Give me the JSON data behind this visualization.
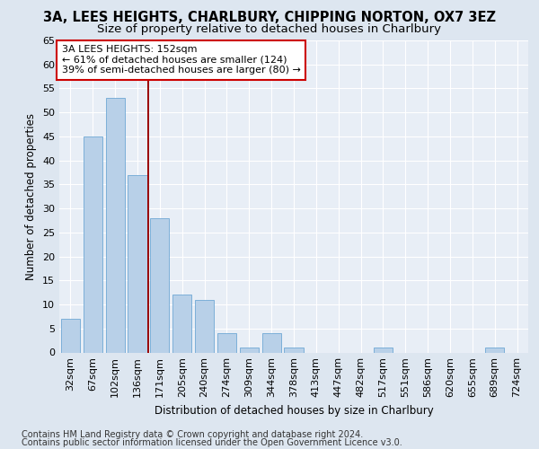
{
  "title1": "3A, LEES HEIGHTS, CHARLBURY, CHIPPING NORTON, OX7 3EZ",
  "title2": "Size of property relative to detached houses in Charlbury",
  "xlabel": "Distribution of detached houses by size in Charlbury",
  "ylabel": "Number of detached properties",
  "categories": [
    "32sqm",
    "67sqm",
    "102sqm",
    "136sqm",
    "171sqm",
    "205sqm",
    "240sqm",
    "274sqm",
    "309sqm",
    "344sqm",
    "378sqm",
    "413sqm",
    "447sqm",
    "482sqm",
    "517sqm",
    "551sqm",
    "586sqm",
    "620sqm",
    "655sqm",
    "689sqm",
    "724sqm"
  ],
  "values": [
    7,
    45,
    53,
    37,
    28,
    12,
    11,
    4,
    1,
    4,
    1,
    0,
    0,
    0,
    1,
    0,
    0,
    0,
    0,
    1,
    0
  ],
  "bar_color": "#b8d0e8",
  "bar_edge_color": "#6fa8d4",
  "vline_x": 3.5,
  "vline_color": "#990000",
  "annotation_lines": [
    "3A LEES HEIGHTS: 152sqm",
    "← 61% of detached houses are smaller (124)",
    "39% of semi-detached houses are larger (80) →"
  ],
  "annotation_box_color": "#ffffff",
  "annotation_box_edge": "#cc0000",
  "ylim": [
    0,
    65
  ],
  "yticks": [
    0,
    5,
    10,
    15,
    20,
    25,
    30,
    35,
    40,
    45,
    50,
    55,
    60,
    65
  ],
  "footer1": "Contains HM Land Registry data © Crown copyright and database right 2024.",
  "footer2": "Contains public sector information licensed under the Open Government Licence v3.0.",
  "background_color": "#dde6f0",
  "plot_bg_color": "#e8eef6",
  "grid_color": "#ffffff",
  "title_fontsize": 10.5,
  "subtitle_fontsize": 9.5,
  "axis_label_fontsize": 8.5,
  "tick_fontsize": 8,
  "annotation_fontsize": 8,
  "footer_fontsize": 7
}
